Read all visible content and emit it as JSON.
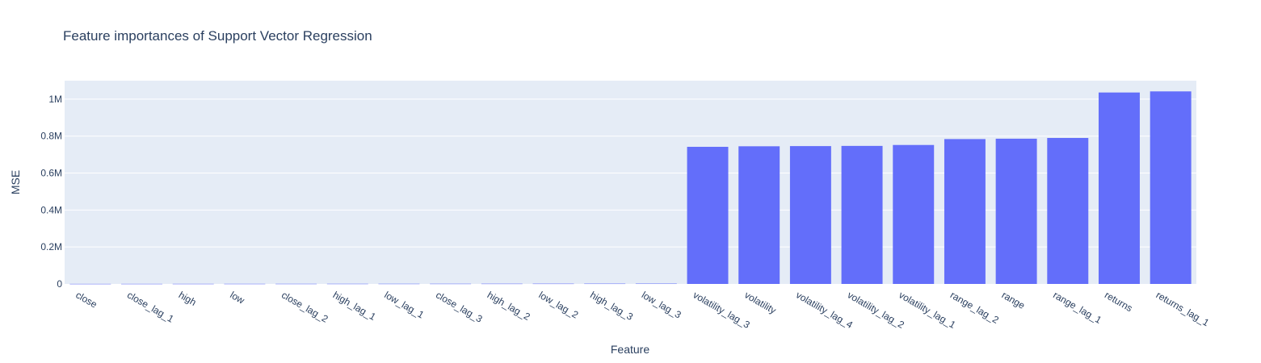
{
  "chart_data": {
    "type": "bar",
    "title": "Feature importances of Support Vector Regression",
    "xlabel": "Feature",
    "ylabel": "MSE",
    "ylim": [
      0,
      1100000
    ],
    "yticks": [
      0,
      200000,
      400000,
      600000,
      800000,
      1000000
    ],
    "ytick_labels": [
      "0",
      "0.2M",
      "0.4M",
      "0.6M",
      "0.8M",
      "1M"
    ],
    "grid": true,
    "bar_color": "#636efa",
    "plot_bg": "#e5ecf6",
    "categories": [
      "close",
      "close_lag_1",
      "high",
      "low",
      "close_lag_2",
      "high_lag_1",
      "low_lag_1",
      "close_lag_3",
      "high_lag_2",
      "low_lag_2",
      "high_lag_3",
      "low_lag_3",
      "volatility_lag_3",
      "volatility",
      "volatility_lag_4",
      "volatility_lag_2",
      "volatility_lag_1",
      "range_lag_2",
      "range",
      "range_lag_1",
      "returns",
      "returns_lag_1"
    ],
    "values": [
      600,
      700,
      800,
      900,
      1000,
      1100,
      1200,
      1300,
      1500,
      1700,
      1900,
      2100,
      742000,
      745000,
      746000,
      747000,
      752000,
      784000,
      786000,
      790000,
      1036000,
      1042000
    ]
  }
}
